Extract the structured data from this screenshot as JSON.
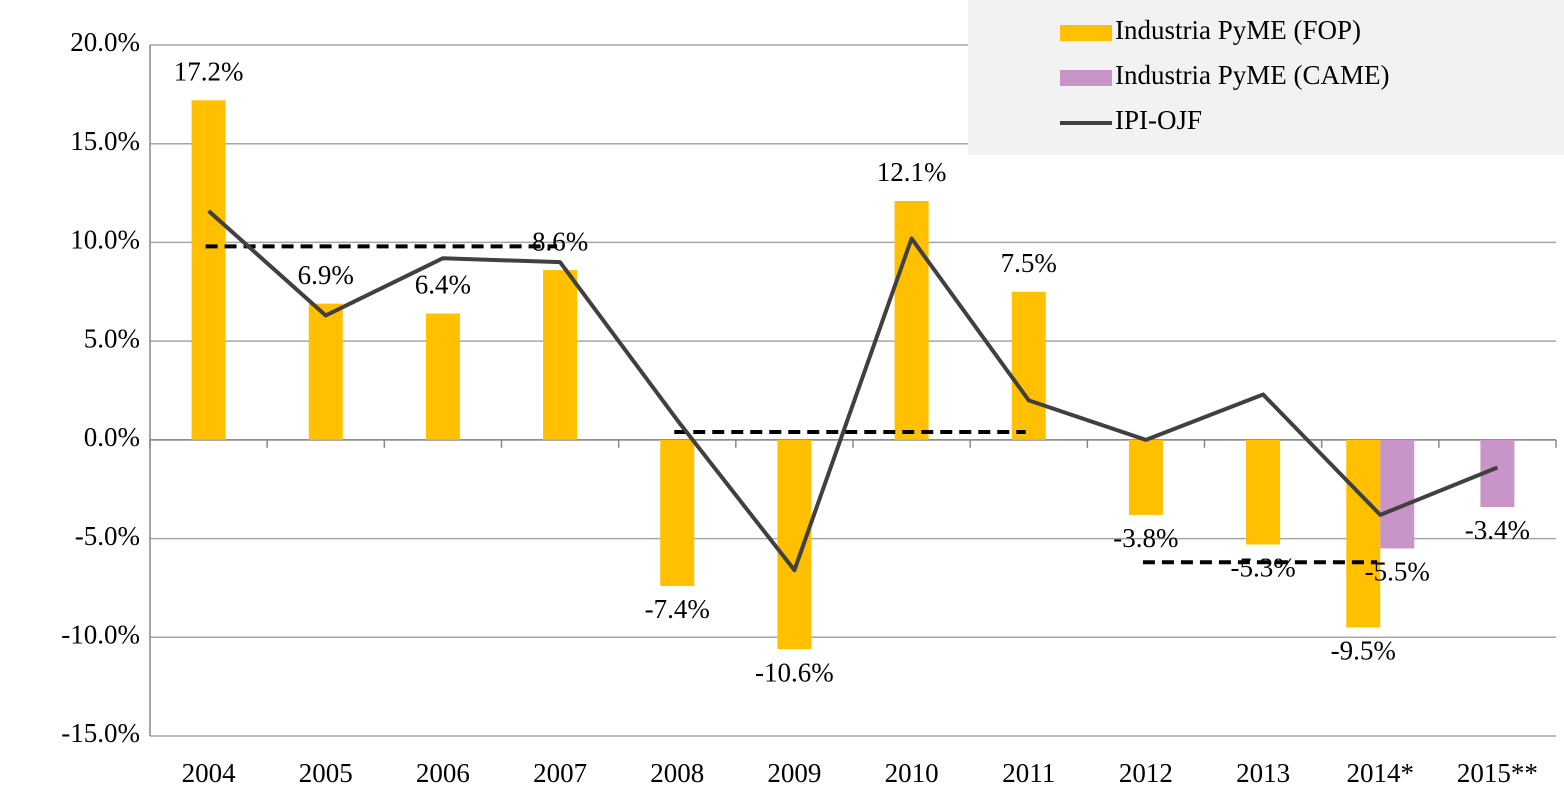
{
  "chart_data": {
    "type": "bar",
    "categories": [
      "2004",
      "2005",
      "2006",
      "2007",
      "2008",
      "2009",
      "2010",
      "2011",
      "2012",
      "2013",
      "2014*",
      "2015**"
    ],
    "series": [
      {
        "name": "Industria PyME (FOP)",
        "type": "bar",
        "color": "#ffc000",
        "values": [
          17.2,
          6.9,
          6.4,
          8.6,
          -7.4,
          -10.6,
          12.1,
          7.5,
          -3.8,
          -5.3,
          -9.5,
          null
        ],
        "value_labels": [
          "17.2%",
          "6.9%",
          "6.4%",
          "8.6%",
          "-7.4%",
          "-10.6%",
          "12.1%",
          "7.5%",
          "-3.8%",
          "-5.3%",
          "-9.5%",
          null
        ]
      },
      {
        "name": "Industria PyME (CAME)",
        "type": "bar",
        "color": "#c994c7",
        "values": [
          null,
          null,
          null,
          null,
          null,
          null,
          null,
          null,
          null,
          null,
          -5.5,
          -3.4
        ],
        "value_labels": [
          null,
          null,
          null,
          null,
          null,
          null,
          null,
          null,
          null,
          null,
          "-5.5%",
          "-3.4%"
        ]
      },
      {
        "name": "IPI-OJF",
        "type": "line",
        "color": "#404040",
        "values": [
          11.6,
          6.3,
          9.2,
          9.0,
          1.0,
          -6.6,
          10.2,
          2.0,
          0.0,
          2.3,
          -3.8,
          -1.4
        ]
      }
    ],
    "reference_lines": [
      {
        "value": 9.8,
        "from": "2004",
        "to": "2007"
      },
      {
        "value": 0.4,
        "from": "2008",
        "to": "2011"
      },
      {
        "value": -6.2,
        "from": "2012",
        "to": "2014*"
      }
    ],
    "ylim": [
      -15,
      20
    ],
    "yticks": [
      {
        "value": -15,
        "label": "-15.0%"
      },
      {
        "value": -10,
        "label": "-10.0%"
      },
      {
        "value": -5,
        "label": "-5.0%"
      },
      {
        "value": 0,
        "label": "0.0%"
      },
      {
        "value": 5,
        "label": "5.0%"
      },
      {
        "value": 10,
        "label": "10.0%"
      },
      {
        "value": 15,
        "label": "15.0%"
      },
      {
        "value": 20,
        "label": "20.0%"
      }
    ],
    "grid": true,
    "legend": "top-right"
  }
}
